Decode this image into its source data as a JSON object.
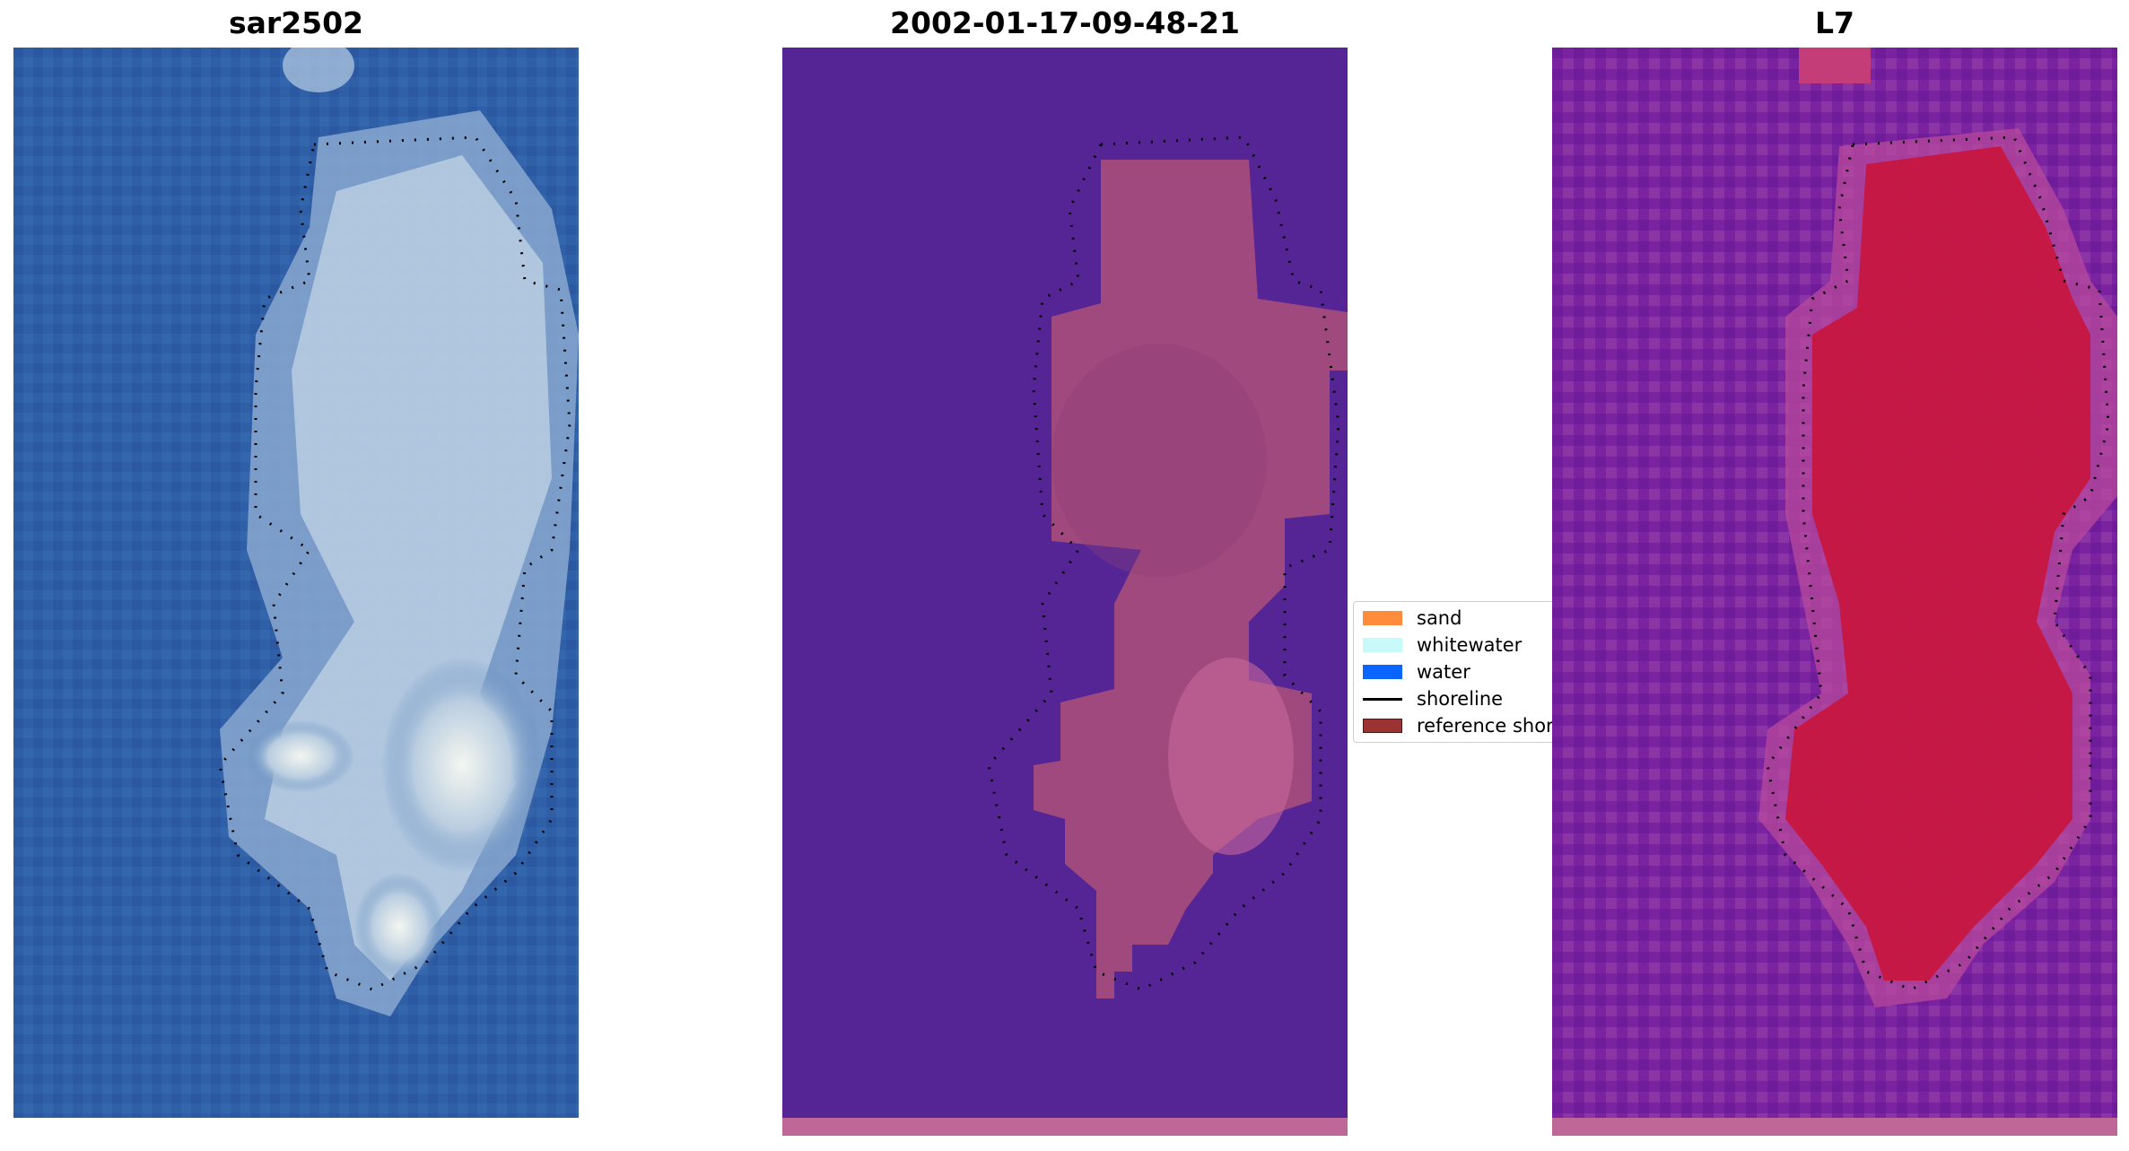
{
  "panels": [
    {
      "title": "sar2502",
      "image": "rgb satellite image of small island with shoreline overlay"
    },
    {
      "title": "2002-01-17-09-48-21",
      "image": "classified image with shoreline overlay"
    },
    {
      "title": "L7",
      "image": "index image with shoreline overlay"
    }
  ],
  "legend": {
    "items": [
      {
        "label": "sand",
        "color": "#ff8c3c"
      },
      {
        "label": "whitewater",
        "color": "#c8fafa"
      },
      {
        "label": "water",
        "color": "#0a64ff"
      },
      {
        "label": "shoreline",
        "color": "#000000"
      },
      {
        "label": "reference shoreline",
        "color": "#9b3333"
      }
    ]
  },
  "colors": {
    "panel1_water": "#2f5fa6",
    "panel1_sand": "#c8dcea",
    "panel2_background": "#552596",
    "panel2_island": "#a0497f",
    "panel3_background": "#7a22a0",
    "panel3_island": "#c8143c",
    "bottom_strip": "#bf6796"
  }
}
